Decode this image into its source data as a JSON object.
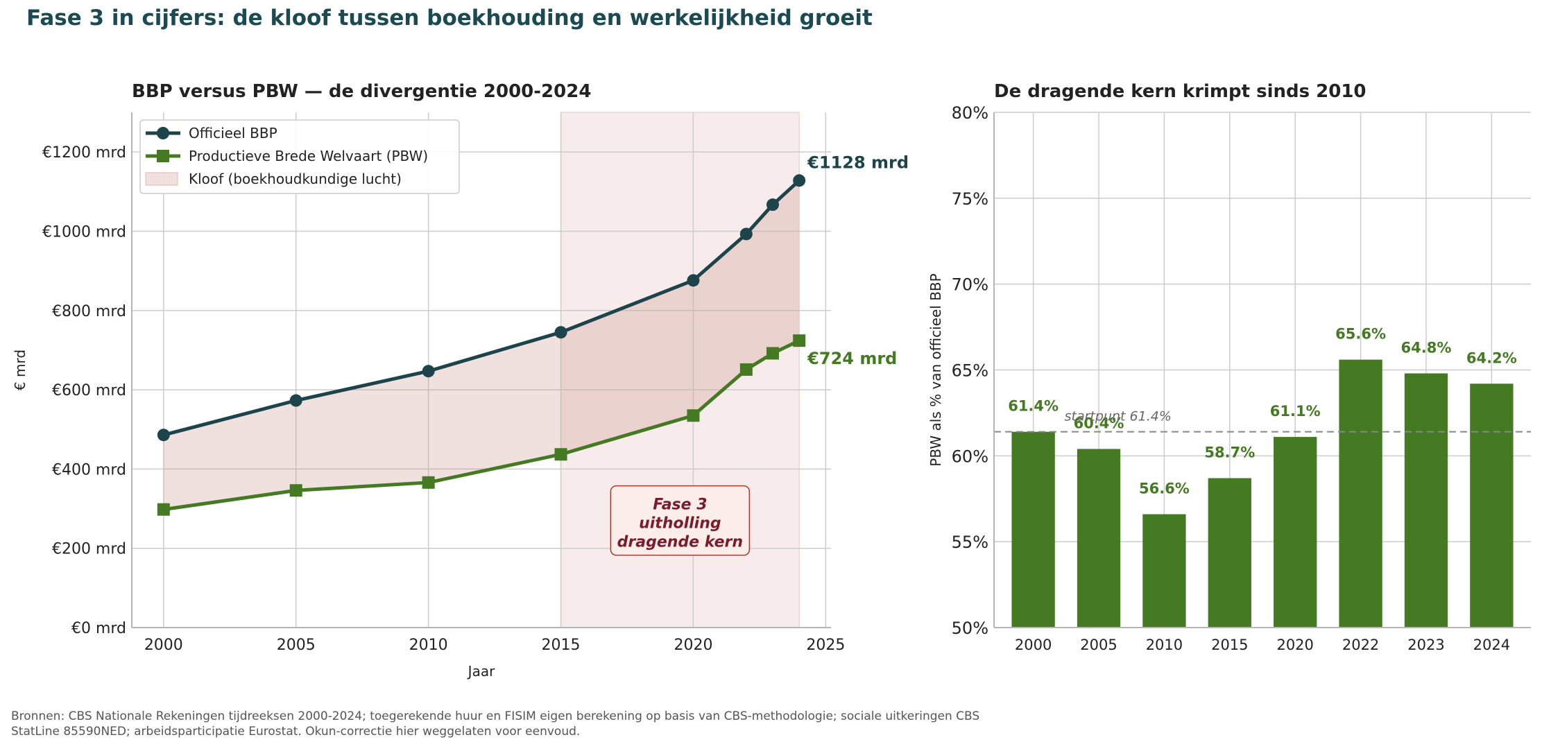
{
  "title": "Fase 3 in cijfers: de kloof tussen boekhouding en werkelijkheid groeit",
  "source": "Bronnen: CBS Nationale Rekeningen tijdreeksen 2000-2024; toegerekende huur en FISIM eigen berekening op basis van CBS-methodologie; sociale uitkeringen CBS StatLine 85590NED; arbeidsparticipatie Eurostat. Okun-correctie hier weggelaten voor eenvoud.",
  "colors": {
    "bbp": "#1c444a",
    "pbw": "#437a22",
    "gap_fill": "#e8d6d2",
    "phase_fill": "#f7eceb",
    "annotation": "#7a1c2b",
    "title": "#1b4a52"
  },
  "chart_data": [
    {
      "type": "line",
      "title": "BBP versus PBW — de divergentie 2000-2024",
      "xlabel": "Jaar",
      "ylabel": "€ mrd",
      "xlim": [
        1998.8,
        2025.2
      ],
      "ylim": [
        0,
        1300
      ],
      "xticks": [
        2000,
        2005,
        2010,
        2015,
        2020,
        2025
      ],
      "yticks": [
        0,
        200,
        400,
        600,
        800,
        1000,
        1200
      ],
      "ytick_labels": [
        "€0 mrd",
        "€200 mrd",
        "€400 mrd",
        "€600 mrd",
        "€800 mrd",
        "€1000 mrd",
        "€1200 mrd"
      ],
      "grid": true,
      "legend_position": "top-left",
      "x": [
        2000,
        2005,
        2010,
        2015,
        2020,
        2022,
        2023,
        2024
      ],
      "series": [
        {
          "name": "Officieel BBP",
          "marker": "circle",
          "values": [
            486,
            573,
            647,
            745,
            876,
            993,
            1067,
            1128
          ]
        },
        {
          "name": "Productieve Brede Welvaart (PBW)",
          "marker": "square",
          "values": [
            298,
            346,
            366,
            437,
            535,
            651,
            692,
            724
          ]
        }
      ],
      "area_legend": "Kloof (boekhoudkundige lucht)",
      "shaded_span": [
        2015,
        2024
      ],
      "end_labels": {
        "bbp": "€1128 mrd",
        "pbw": "€724 mrd"
      },
      "annotation": {
        "lines": [
          "Fase 3",
          "uitholling",
          "dragende kern"
        ],
        "x": 2019.5,
        "y": 270
      }
    },
    {
      "type": "bar",
      "title": "De dragende kern krimpt sinds 2010",
      "ylabel": "PBW als % van officieel BBP",
      "categories": [
        "2000",
        "2005",
        "2010",
        "2015",
        "2020",
        "2022",
        "2023",
        "2024"
      ],
      "values": [
        61.4,
        60.4,
        56.6,
        58.7,
        61.1,
        65.6,
        64.8,
        64.2
      ],
      "value_labels": [
        "61.4%",
        "60.4%",
        "56.6%",
        "58.7%",
        "61.1%",
        "65.6%",
        "64.8%",
        "64.2%"
      ],
      "ylim": [
        50,
        80
      ],
      "yticks": [
        50,
        55,
        60,
        65,
        70,
        75,
        80
      ],
      "ytick_labels": [
        "50%",
        "55%",
        "60%",
        "65%",
        "70%",
        "75%",
        "80%"
      ],
      "grid": true,
      "reference_line": {
        "value": 61.4,
        "label": "startpunt 61.4%"
      }
    }
  ]
}
